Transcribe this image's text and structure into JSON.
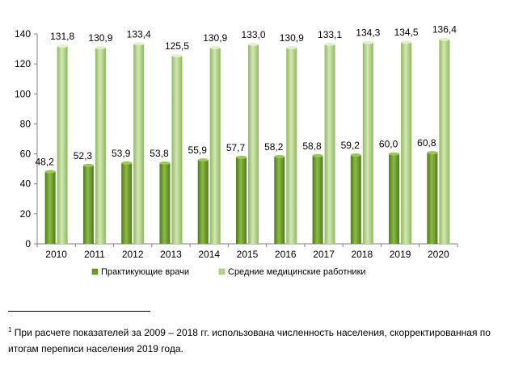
{
  "chart_data": {
    "type": "bar",
    "categories": [
      "2010",
      "2011",
      "2012",
      "2013",
      "2014",
      "2015",
      "2016",
      "2017",
      "2018",
      "2019",
      "2020"
    ],
    "series": [
      {
        "name": "Практикующие врачи",
        "values": [
          48.2,
          52.3,
          53.9,
          53.8,
          55.9,
          57.7,
          58.2,
          58.8,
          59.2,
          60.0,
          60.8
        ],
        "labels": [
          "48,2",
          "52,3",
          "53,9",
          "53,8",
          "55,9",
          "57,7",
          "58,2",
          "58,8",
          "59,2",
          "60,0",
          "60,8"
        ],
        "color": "#6d9a2b"
      },
      {
        "name": "Средние медицинские работники",
        "values": [
          131.8,
          130.9,
          133.4,
          125.5,
          130.9,
          133.0,
          130.9,
          133.1,
          134.3,
          134.5,
          136.4
        ],
        "labels": [
          "131,8",
          "130,9",
          "133,4",
          "125,5",
          "130,9",
          "133,0",
          "130,9",
          "133,1",
          "134,3",
          "134,5",
          "136,4"
        ],
        "color": "#b5d48a"
      }
    ],
    "ylim": [
      0,
      140
    ],
    "yticks": [
      0,
      20,
      40,
      60,
      80,
      100,
      120,
      140
    ],
    "grid": false,
    "legend": "bottom"
  },
  "footnote": {
    "marker": "1",
    "text": " При расчете показателей за 2009 – 2018 гг. использована численность населения, скорректированная по итогам переписи населения 2019 года."
  }
}
